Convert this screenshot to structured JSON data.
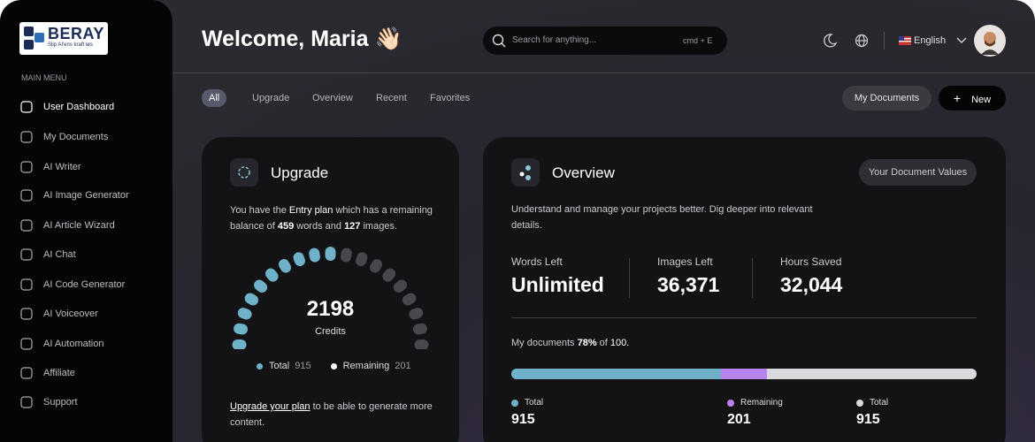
{
  "brand": {
    "name": "BERAY",
    "tagline": "Slip AI'ens kraft løs"
  },
  "sidebar": {
    "section": "MAIN MENU",
    "items": [
      "User Dashboard",
      "My Documents",
      "AI Writer",
      "AI Image Generator",
      "AI Article Wizard",
      "AI Chat",
      "AI Code Generator",
      "AI Voiceover",
      "AI Automation",
      "Affiliate",
      "Support"
    ]
  },
  "header": {
    "greeting": "Welcome, Maria",
    "emoji": "👋🏻",
    "search_placeholder": "Search for anything...",
    "shortcut": "cmd + E",
    "language": "English"
  },
  "tabs": [
    "All",
    "Upgrade",
    "Overview",
    "Recent",
    "Favorites"
  ],
  "actions": {
    "documents": "My Documents",
    "new": "New"
  },
  "upgrade": {
    "title": "Upgrade",
    "text": [
      "You have the ",
      "Entry plan",
      " which has a remaining balance of ",
      "459",
      " words and ",
      "127",
      " images."
    ],
    "credits": "2198",
    "credits_label": "Credits",
    "legend": [
      {
        "label": "Total",
        "value": "915"
      },
      {
        "label": "Remaining",
        "value": "201"
      }
    ],
    "footer_link": "Upgrade your plan",
    "footer_text": " to be able to generate more content."
  },
  "overview": {
    "title": "Overview",
    "button": "Your Document Values",
    "description": "Understand and manage your projects better. Dig deeper into relevant details.",
    "stats": [
      {
        "label": "Words Left",
        "value": "Unlimited"
      },
      {
        "label": "Images Left",
        "value": "36,371"
      },
      {
        "label": "Hours Saved",
        "value": "32,044"
      }
    ],
    "documents": [
      "My documents ",
      "78%",
      " of ",
      "100."
    ],
    "bar": [
      {
        "label": "Total",
        "value": 915,
        "color": "#6fb1c8"
      },
      {
        "label": "Remaining",
        "value": 201,
        "color": "#b784f0"
      },
      {
        "label": "Total",
        "value": 915,
        "color": "#d9d9de"
      }
    ]
  }
}
